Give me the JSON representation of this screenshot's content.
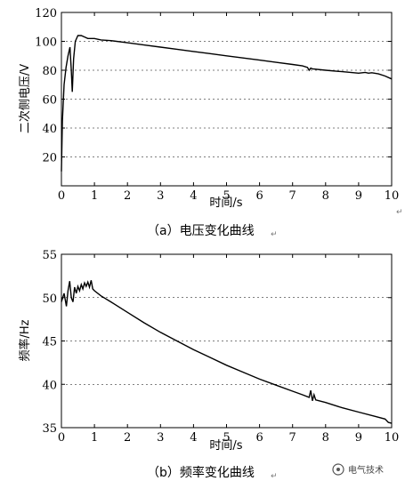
{
  "chart_data": [
    {
      "type": "line",
      "xlabel": "时间/s",
      "ylabel": "二次侧电压/V",
      "caption": "（a）电压变化曲线",
      "xlim": [
        0,
        10
      ],
      "ylim": [
        0,
        120
      ],
      "xticks": [
        0,
        1,
        2,
        3,
        4,
        5,
        6,
        7,
        8,
        9,
        10
      ],
      "yticks": [
        20,
        40,
        60,
        80,
        100,
        120
      ],
      "grid": "horizontal-dashed",
      "series": [
        {
          "x": [
            0,
            0.03,
            0.08,
            0.14,
            0.2,
            0.26,
            0.3,
            0.33,
            0.37,
            0.42,
            0.5,
            0.6,
            0.7,
            0.8,
            0.9,
            1.0,
            1.2,
            1.5,
            2.0,
            2.5,
            3.0,
            3.5,
            4.0,
            4.5,
            5.0,
            5.5,
            6.0,
            6.5,
            7.0,
            7.3,
            7.45,
            7.5,
            7.55,
            7.6,
            8.0,
            8.5,
            9.0,
            9.2,
            9.3,
            9.4,
            9.6,
            9.8,
            10.0
          ],
          "y": [
            10,
            45,
            70,
            82,
            90,
            96,
            80,
            65,
            88,
            100,
            104,
            104,
            103,
            102,
            102,
            102,
            101,
            100.5,
            99,
            97.5,
            96,
            94.5,
            93,
            91.5,
            90,
            88.5,
            87,
            85.5,
            84,
            83,
            82,
            80,
            81.5,
            81,
            80,
            79,
            78,
            78.5,
            78,
            78.3,
            77.5,
            76,
            74
          ]
        }
      ]
    },
    {
      "type": "line",
      "xlabel": "时间/s",
      "ylabel": "频率/Hz",
      "caption": "（b）频率变化曲线",
      "xlim": [
        0,
        10
      ],
      "ylim": [
        35,
        55
      ],
      "xticks": [
        0,
        1,
        2,
        3,
        4,
        5,
        6,
        7,
        8,
        9,
        10
      ],
      "yticks": [
        35,
        40,
        45,
        50,
        55
      ],
      "grid": "horizontal-dashed",
      "series": [
        {
          "x": [
            0,
            0.08,
            0.15,
            0.2,
            0.25,
            0.3,
            0.35,
            0.4,
            0.45,
            0.5,
            0.55,
            0.6,
            0.65,
            0.7,
            0.75,
            0.8,
            0.85,
            0.9,
            0.95,
            1.0,
            1.2,
            1.5,
            2.0,
            2.5,
            3.0,
            3.5,
            4.0,
            4.5,
            5.0,
            5.5,
            6.0,
            6.5,
            7.0,
            7.3,
            7.5,
            7.55,
            7.6,
            7.65,
            7.7,
            8.0,
            8.5,
            9.0,
            9.5,
            9.8,
            9.9,
            10.0
          ],
          "y": [
            49.5,
            50.5,
            49.0,
            50.8,
            51.9,
            50.0,
            49.5,
            51.2,
            50.5,
            51.3,
            50.8,
            51.5,
            51.0,
            51.7,
            51.3,
            51.8,
            51.2,
            52.0,
            51.0,
            50.8,
            50.2,
            49.5,
            48.3,
            47.1,
            46.0,
            45.0,
            44.0,
            43.1,
            42.2,
            41.4,
            40.6,
            39.9,
            39.2,
            38.8,
            38.5,
            39.3,
            38.1,
            38.8,
            38.2,
            37.9,
            37.3,
            36.8,
            36.3,
            36.0,
            35.6,
            35.5
          ]
        }
      ]
    }
  ],
  "watermark": "电气技术",
  "return_mark": "↵"
}
